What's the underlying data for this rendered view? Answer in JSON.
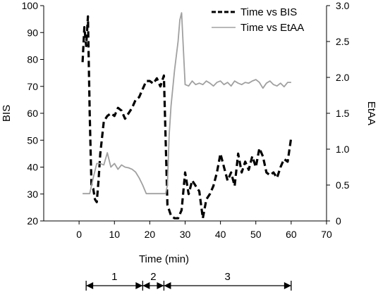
{
  "chart_data": {
    "type": "line",
    "xlabel": "Time (min)",
    "ylabel": "BIS",
    "y2label": "EtAA",
    "xlim": [
      -10,
      70
    ],
    "xticks": [
      0,
      10,
      20,
      30,
      40,
      50,
      60,
      70
    ],
    "ylim": [
      20,
      100
    ],
    "yticks": [
      20,
      30,
      40,
      50,
      60,
      70,
      80,
      90,
      100
    ],
    "y2lim": [
      0,
      3.0
    ],
    "y2ticks": [
      "0",
      "0.5",
      "1.0",
      "1.5",
      "2.0",
      "2.5",
      "3.0"
    ],
    "legend_position": "top-right",
    "series": [
      {
        "name": "Time vs BIS",
        "axis": "left",
        "style": "dashed",
        "color": "#000000",
        "x": [
          1,
          1.5,
          2,
          2.5,
          3,
          3.5,
          4,
          4.5,
          5,
          5.5,
          6,
          7,
          8,
          9,
          10,
          11,
          12,
          13,
          14,
          15,
          16,
          17,
          18,
          19,
          20,
          21,
          22,
          23,
          24,
          24.5,
          25,
          25.5,
          26,
          27,
          28,
          29,
          30,
          31,
          32,
          33,
          34,
          35,
          36,
          37,
          38,
          39,
          40,
          41,
          42,
          43,
          44,
          45,
          46,
          47,
          48,
          49,
          50,
          51,
          52,
          53,
          54,
          55,
          56,
          57,
          58,
          59,
          60
        ],
        "values": [
          79,
          92,
          85,
          96,
          60,
          33,
          32,
          28,
          27,
          35,
          45,
          57,
          59,
          60,
          59,
          62,
          61,
          58,
          60,
          62,
          65,
          66,
          69,
          72,
          72,
          71,
          73,
          70,
          74,
          50,
          26,
          24,
          22,
          21,
          21,
          24,
          38,
          30,
          35,
          33,
          31,
          21,
          28,
          30,
          33,
          38,
          45,
          40,
          35,
          38,
          33,
          45,
          38,
          42,
          39,
          44,
          40,
          47,
          44,
          38,
          37,
          38,
          36,
          40,
          43,
          42,
          51
        ]
      },
      {
        "name": "Time vs EtAA",
        "axis": "right",
        "style": "solid",
        "color": "#a0a0a0",
        "x": [
          1,
          2,
          3,
          4,
          5,
          6,
          7,
          8,
          9,
          10,
          11,
          12,
          13,
          14,
          15,
          16,
          17,
          18,
          19,
          20,
          21,
          22,
          23,
          24,
          24.5,
          25,
          25.5,
          26,
          27,
          28,
          28.5,
          29,
          30,
          31,
          32,
          33,
          34,
          35,
          36,
          37,
          38,
          39,
          40,
          41,
          42,
          43,
          44,
          45,
          46,
          47,
          48,
          49,
          50,
          51,
          52,
          53,
          54,
          55,
          56,
          57,
          58,
          59,
          60
        ],
        "values": [
          0.38,
          0.38,
          0.38,
          0.6,
          0.8,
          0.8,
          0.78,
          0.95,
          0.75,
          0.8,
          0.72,
          0.78,
          0.75,
          0.74,
          0.72,
          0.68,
          0.6,
          0.5,
          0.38,
          0.38,
          0.38,
          0.38,
          0.38,
          0.38,
          0.38,
          0.5,
          1.2,
          1.6,
          2.1,
          2.5,
          2.8,
          2.9,
          1.9,
          1.88,
          1.95,
          1.9,
          1.92,
          1.9,
          1.95,
          1.92,
          1.88,
          1.93,
          1.95,
          1.9,
          1.93,
          1.88,
          1.95,
          1.92,
          1.9,
          1.93,
          1.92,
          1.95,
          1.97,
          1.93,
          1.85,
          1.92,
          1.95,
          1.9,
          1.88,
          1.92,
          1.87,
          1.93,
          1.93
        ]
      }
    ],
    "phases": [
      {
        "label": "1",
        "start": 2,
        "end": 18
      },
      {
        "label": "2",
        "start": 18,
        "end": 24
      },
      {
        "label": "3",
        "start": 24,
        "end": 60
      }
    ]
  }
}
